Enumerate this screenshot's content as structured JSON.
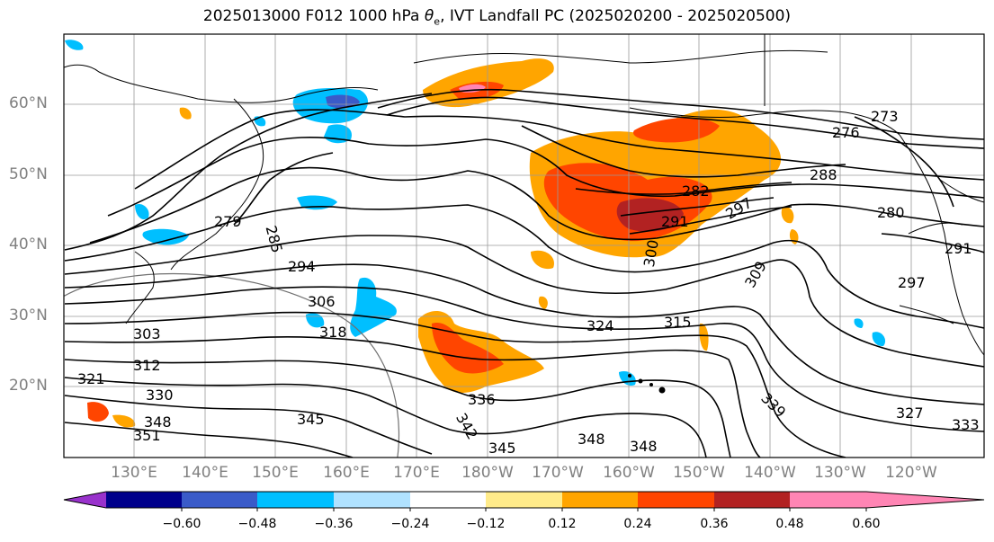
{
  "title_prefix": "2025013000 F012 1000 hPa ",
  "title_symbol": "θ",
  "title_subscript": "e",
  "title_suffix": ", IVT Landfall PC (2025020200 - 2025020500)",
  "lat_labels": [
    "60°N",
    "50°N",
    "40°N",
    "30°N",
    "20°N"
  ],
  "lon_labels": [
    "130°E",
    "140°E",
    "150°E",
    "160°E",
    "170°E",
    "180°W",
    "170°W",
    "160°W",
    "150°W",
    "140°W",
    "130°W",
    "120°W"
  ],
  "colorbar": {
    "colors": [
      "#9932cc",
      "#00008b",
      "#3a5bc9",
      "#00bfff",
      "#b0e2ff",
      "#ffffff",
      "#ffeb8a",
      "#ffa500",
      "#ff4500",
      "#b22222",
      "#ff85b4"
    ],
    "tick_labels": [
      "−0.60",
      "−0.48",
      "−0.36",
      "−0.24",
      "−0.12",
      "0.12",
      "0.24",
      "0.36",
      "0.48",
      "0.60"
    ]
  },
  "contour_labels": [
    "279",
    "285",
    "294",
    "306",
    "318",
    "303",
    "312",
    "321",
    "330",
    "348",
    "351",
    "345",
    "336",
    "342",
    "345",
    "348",
    "348",
    "324",
    "315",
    "300",
    "291",
    "282",
    "297",
    "309",
    "288",
    "276",
    "273",
    "339",
    "327",
    "333",
    "297",
    "291",
    "280"
  ]
}
